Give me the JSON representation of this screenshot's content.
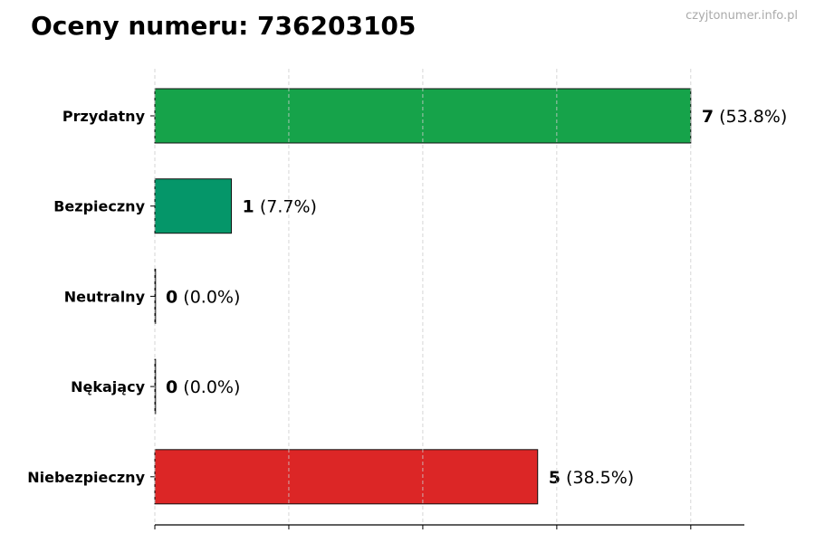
{
  "title": "Oceny numeru: 736203105",
  "watermark": "czyjtonumer.info.pl",
  "chart_data": {
    "type": "bar",
    "orientation": "horizontal",
    "title": "Oceny numeru: 736203105",
    "categories": [
      "Przydatny",
      "Bezpieczny",
      "Neutralny",
      "Nękający",
      "Niebezpieczny"
    ],
    "values": [
      7,
      1,
      0,
      0,
      5
    ],
    "percent_labels": [
      "(53.8%)",
      "(7.7%)",
      "(0.0%)",
      "(0.0%)",
      "(38.5%)"
    ],
    "colors": [
      "#16a34a",
      "#059669",
      "#6b7280",
      "#f59e0b",
      "#dc2626"
    ],
    "xlim": [
      0,
      7.7
    ],
    "xticks": [
      0,
      1.75,
      3.5,
      5.25,
      7
    ],
    "xtick_labels_shown": false,
    "grid": "vertical dashed",
    "xlabel": "",
    "ylabel": ""
  }
}
